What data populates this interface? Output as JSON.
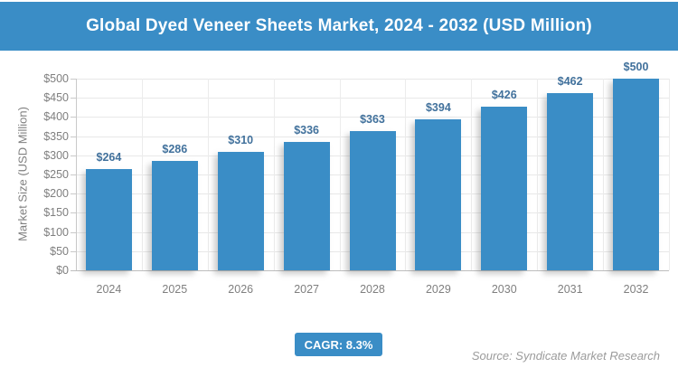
{
  "header": {
    "title": "Global Dyed Veneer Sheets Market, 2024 - 2032 (USD Million)"
  },
  "chart_data": {
    "type": "bar",
    "title": "Global Dyed Veneer Sheets Market, 2024 - 2032 (USD Million)",
    "categories": [
      "2024",
      "2025",
      "2026",
      "2027",
      "2028",
      "2029",
      "2030",
      "2031",
      "2032"
    ],
    "values": [
      264,
      286,
      310,
      336,
      363,
      394,
      426,
      462,
      500
    ],
    "value_labels": [
      "$264",
      "$286",
      "$310",
      "$336",
      "$363",
      "$394",
      "$426",
      "$462",
      "$500"
    ],
    "xlabel": "",
    "ylabel": "Market Size (USD Million)",
    "ylim": [
      0,
      500
    ],
    "ytick_step": 50,
    "ytick_labels": [
      "$0",
      "$50",
      "$100",
      "$150",
      "$200",
      "$250",
      "$300",
      "$350",
      "$400",
      "$450",
      "$500"
    ],
    "grid": "horizontal and vertical light-gray gridlines, plot border on left/bottom",
    "legend": "none"
  },
  "footer": {
    "cagr_label": "CAGR: 8.3%",
    "source": "Source: Syndicate Market Research"
  },
  "colors": {
    "accent_blue": "#3a8dc6",
    "bar_fill": "#3a8dc6",
    "value_label_blue": "#41719c",
    "axis_text_gray": "#7f7f7f",
    "gridline_gray": "#e8e8e8",
    "source_gray": "#9b9b9b",
    "background": "#ffffff"
  }
}
